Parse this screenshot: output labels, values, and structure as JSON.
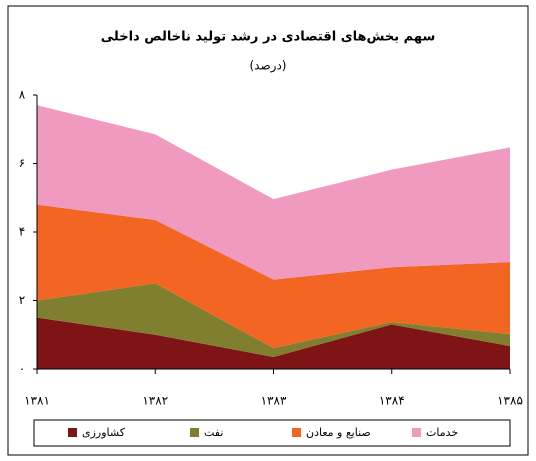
{
  "chart_data": {
    "type": "stacked_area",
    "title": "سهم بخش‌های اقتصادی در رشد تولید ناخالص داخلی",
    "subtitle": "(درصد)",
    "categories": [
      "۱۳۸۱",
      "۱۳۸۲",
      "۱۳۸۳",
      "۱۳۸۴",
      "۱۳۸۵"
    ],
    "series": [
      {
        "name": "کشاورزی",
        "color": "#7f1416",
        "values": [
          1.5,
          1.0,
          0.35,
          1.3,
          0.67
        ]
      },
      {
        "name": "نفت",
        "color": "#7f7f2f",
        "values": [
          0.5,
          1.5,
          0.26,
          0.07,
          0.35
        ]
      },
      {
        "name": "صنایع و معادن",
        "color": "#f26522",
        "values": [
          2.8,
          1.85,
          2.0,
          1.6,
          2.1
        ]
      },
      {
        "name": "خدمات",
        "color": "#f09ac0",
        "values": [
          2.9,
          2.5,
          2.35,
          2.85,
          3.35
        ]
      }
    ],
    "ylim": [
      0,
      8
    ],
    "yticks": [
      {
        "value": 0,
        "label": "۰"
      },
      {
        "value": 2,
        "label": "۲"
      },
      {
        "value": 4,
        "label": "۴"
      },
      {
        "value": 6,
        "label": "۶"
      },
      {
        "value": 8,
        "label": "۸"
      }
    ],
    "grid": false,
    "legend": "bottom"
  }
}
